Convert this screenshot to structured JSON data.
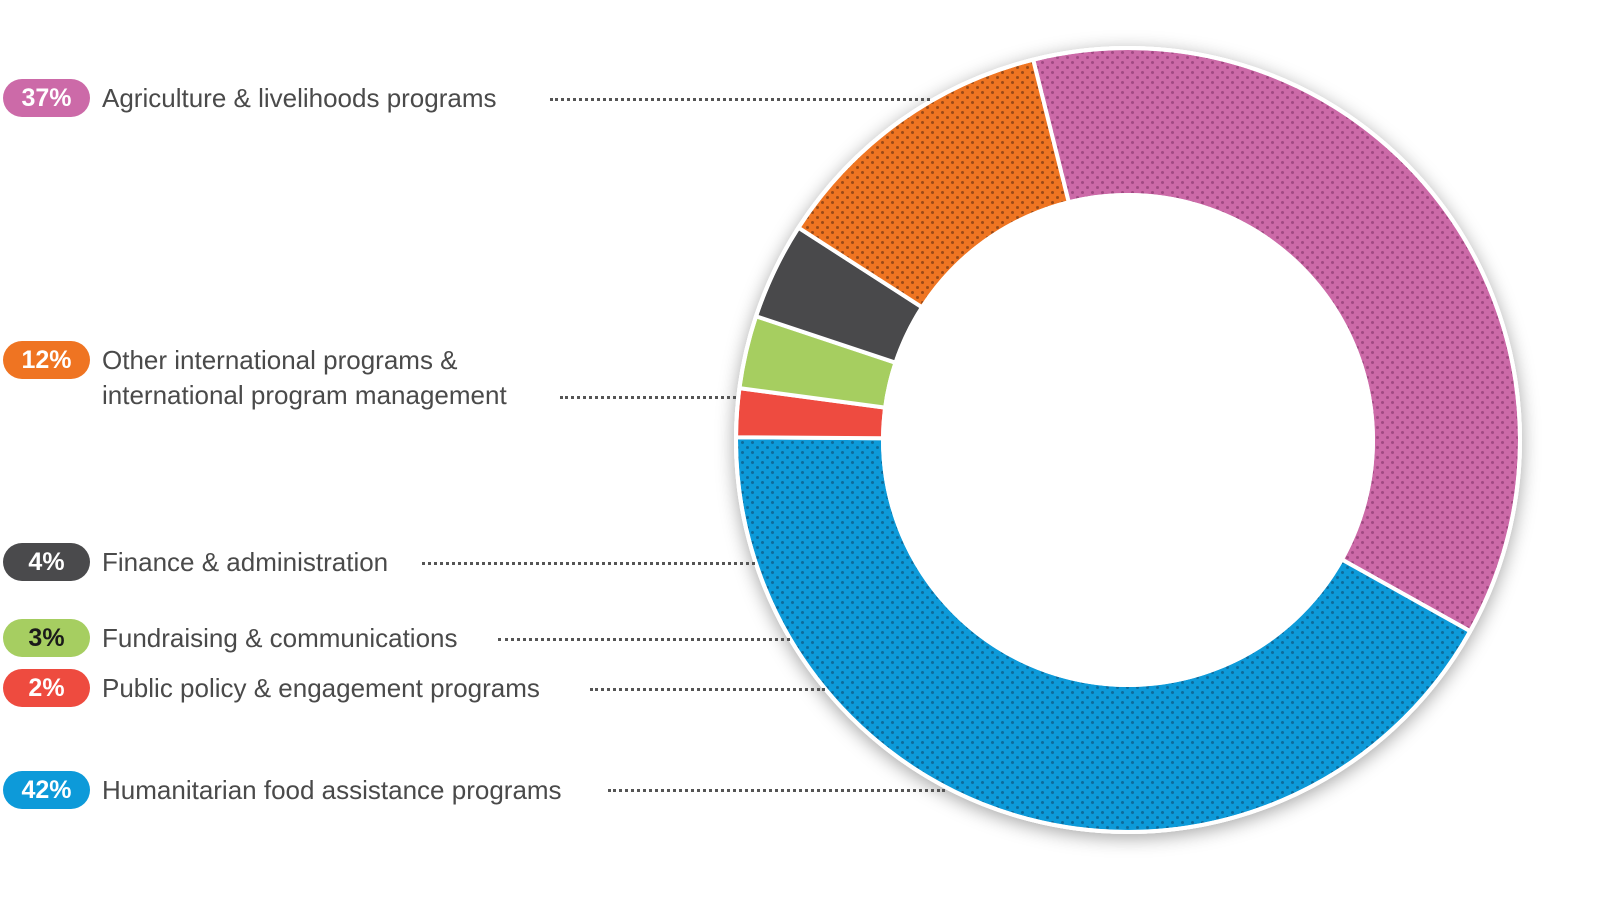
{
  "chart_data": {
    "type": "pie",
    "variant": "donut",
    "title": "",
    "slices": [
      {
        "label": "Agriculture & livelihoods programs",
        "value": 37,
        "display": "37%",
        "color": "#cc6aa8",
        "dot": "#a04a82",
        "text_color": "#ffffff"
      },
      {
        "label": "Humanitarian food assistance programs",
        "value": 42,
        "display": "42%",
        "color": "#0d9ad9",
        "dot": "#0a6a9a",
        "text_color": "#ffffff"
      },
      {
        "label": "Public policy & engagement programs",
        "value": 2,
        "display": "2%",
        "color": "#ee4b3f",
        "dot": null,
        "text_color": "#ffffff"
      },
      {
        "label": "Fundraising & communications",
        "value": 3,
        "display": "3%",
        "color": "#a6ce61",
        "dot": null,
        "text_color": "#1a1a1a"
      },
      {
        "label": "Finance & administration",
        "value": 4,
        "display": "4%",
        "color": "#4a4a4c",
        "dot": null,
        "text_color": "#ffffff"
      },
      {
        "label_lines": [
          "Other international programs &",
          "international program management"
        ],
        "label": "Other international programs & international program management",
        "value": 12,
        "display": "12%",
        "color": "#ef7422",
        "dot": "#9a4a18",
        "text_color": "#ffffff"
      }
    ],
    "legend_order": [
      0,
      5,
      4,
      3,
      2,
      1
    ]
  }
}
